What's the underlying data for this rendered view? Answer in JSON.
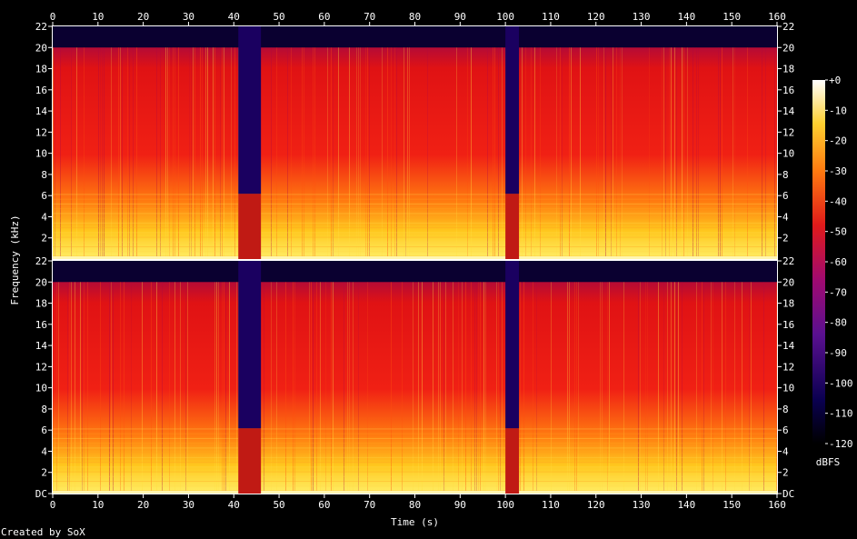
{
  "chart_data": {
    "type": "heatmap",
    "subtype": "spectrogram",
    "xlabel": "Time (s)",
    "ylabel": "Frequency (kHz)",
    "footer": "Created by SoX",
    "x_ticks": [
      "0",
      "10",
      "20",
      "30",
      "40",
      "50",
      "60",
      "70",
      "80",
      "90",
      "100",
      "110",
      "120",
      "130",
      "140",
      "150",
      "160"
    ],
    "xlim": [
      0,
      160
    ],
    "channels": [
      {
        "y_ticks": [
          "22",
          "20",
          "18",
          "16",
          "14",
          "12",
          "10",
          "8",
          "6",
          "4",
          "2"
        ],
        "ylim": [
          0,
          22
        ]
      },
      {
        "y_ticks": [
          "22",
          "20",
          "18",
          "16",
          "14",
          "12",
          "10",
          "8",
          "6",
          "4",
          "2",
          "DC"
        ],
        "ylim": [
          0,
          22
        ]
      }
    ],
    "colorbar": {
      "label": "dBFS",
      "ticks": [
        "+0",
        "-10",
        "-20",
        "-30",
        "-40",
        "-50",
        "-60",
        "-70",
        "-80",
        "-90",
        "-100",
        "-110",
        "-120"
      ],
      "range": [
        -120,
        0
      ]
    },
    "quiet_segments_s": [
      [
        41,
        46
      ],
      [
        100,
        103
      ]
    ],
    "approx_bandwidth_khz": 20
  }
}
